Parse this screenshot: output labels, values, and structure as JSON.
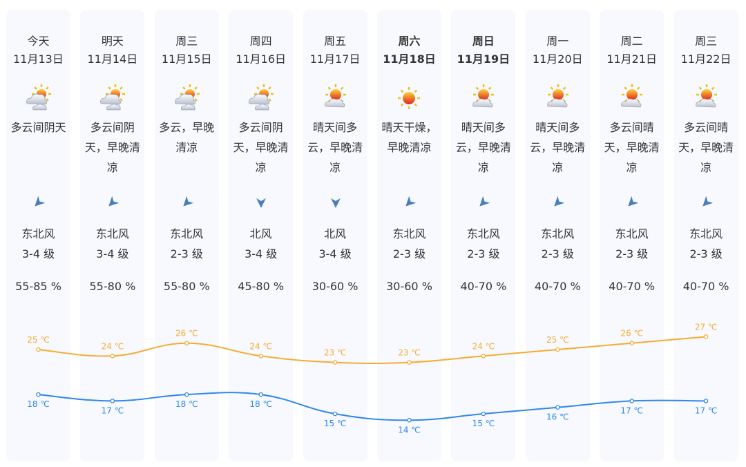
{
  "colors": {
    "card_bg": "#f7f9fe",
    "high": "#f5ac2f",
    "low": "#2f86ec",
    "arrow": "#4a7fb8"
  },
  "days": [
    {
      "day": "今天",
      "date": "11月13日",
      "icon": "cloudy-sun-icon",
      "desc": "多云间阴天",
      "wind_dir": "东北风",
      "wind_level": "3-4 级",
      "wind_angle": 225,
      "humidity": "55-85 %",
      "high": "25 ℃",
      "low": "18 ℃",
      "bold": false
    },
    {
      "day": "明天",
      "date": "11月14日",
      "icon": "cloudy-sun-icon",
      "desc": "多云间阴天，早晚清凉",
      "wind_dir": "东北风",
      "wind_level": "3-4 级",
      "wind_angle": 225,
      "humidity": "55-80 %",
      "high": "24 ℃",
      "low": "17 ℃",
      "bold": false
    },
    {
      "day": "周三",
      "date": "11月15日",
      "icon": "cloudy-sun-icon",
      "desc": "多云，早晚清凉",
      "wind_dir": "东北风",
      "wind_level": "2-3 级",
      "wind_angle": 225,
      "humidity": "55-80 %",
      "high": "26 ℃",
      "low": "18 ℃",
      "bold": false
    },
    {
      "day": "周四",
      "date": "11月16日",
      "icon": "cloudy-sun-icon",
      "desc": "多云间阴天，早晚清凉",
      "wind_dir": "北风",
      "wind_level": "3-4 级",
      "wind_angle": 180,
      "humidity": "45-80 %",
      "high": "24 ℃",
      "low": "18 ℃",
      "bold": false
    },
    {
      "day": "周五",
      "date": "11月17日",
      "icon": "sun-cloud-icon",
      "desc": "晴天间多云，早晚清凉",
      "wind_dir": "北风",
      "wind_level": "3-4 级",
      "wind_angle": 180,
      "humidity": "30-60 %",
      "high": "23 ℃",
      "low": "15 ℃",
      "bold": false
    },
    {
      "day": "周六",
      "date": "11月18日",
      "icon": "sun-icon",
      "desc": "晴天干燥，早晚清凉",
      "wind_dir": "东北风",
      "wind_level": "2-3 级",
      "wind_angle": 225,
      "humidity": "30-60 %",
      "high": "23 ℃",
      "low": "14 ℃",
      "bold": true
    },
    {
      "day": "周日",
      "date": "11月19日",
      "icon": "sun-cloud-icon",
      "desc": "晴天间多云，早晚清凉",
      "wind_dir": "东北风",
      "wind_level": "2-3 级",
      "wind_angle": 225,
      "humidity": "40-70 %",
      "high": "24 ℃",
      "low": "15 ℃",
      "bold": true
    },
    {
      "day": "周一",
      "date": "11月20日",
      "icon": "sun-cloud-icon",
      "desc": "晴天间多云，早晚清凉",
      "wind_dir": "东北风",
      "wind_level": "2-3 级",
      "wind_angle": 225,
      "humidity": "40-70 %",
      "high": "25 ℃",
      "low": "16 ℃",
      "bold": false
    },
    {
      "day": "周二",
      "date": "11月21日",
      "icon": "sun-cloud-icon",
      "desc": "多云间晴天，早晚清凉",
      "wind_dir": "东北风",
      "wind_level": "2-3 级",
      "wind_angle": 225,
      "humidity": "40-70 %",
      "high": "26 ℃",
      "low": "17 ℃",
      "bold": false
    },
    {
      "day": "周三",
      "date": "11月22日",
      "icon": "sun-cloud-icon",
      "desc": "多云间晴天，早晚清凉",
      "wind_dir": "东北风",
      "wind_level": "2-3 级",
      "wind_angle": 225,
      "humidity": "40-70 %",
      "high": "27 ℃",
      "low": "17 ℃",
      "bold": false
    }
  ],
  "chart_data": {
    "type": "line",
    "categories": [
      "11月13日",
      "11月14日",
      "11月15日",
      "11月16日",
      "11月17日",
      "11月18日",
      "11月19日",
      "11月20日",
      "11月21日",
      "11月22日"
    ],
    "series": [
      {
        "values": [
          25,
          24,
          26,
          24,
          23,
          23,
          24,
          25,
          26,
          27
        ],
        "color": "#f5ac2f"
      },
      {
        "values": [
          18,
          17,
          18,
          18,
          15,
          14,
          15,
          16,
          17,
          17
        ],
        "color": "#2f86ec"
      }
    ],
    "unit": "℃",
    "grid": false
  }
}
